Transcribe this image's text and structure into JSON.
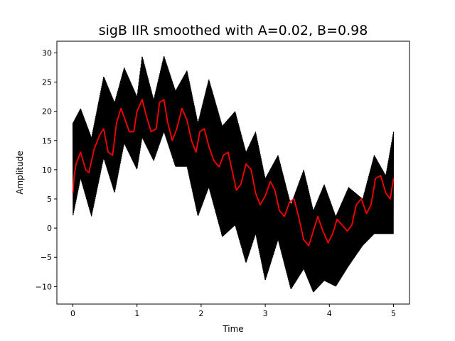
{
  "chart_data": {
    "type": "line",
    "title": "sigB IIR smoothed with A=0.02, B=0.98",
    "xlabel": "Time",
    "ylabel": "Amplitude",
    "xlim": [
      -0.25,
      5.25
    ],
    "ylim": [
      -13,
      32
    ],
    "xticks": [
      0,
      1,
      2,
      3,
      4,
      5
    ],
    "yticks": [
      -10,
      -5,
      0,
      5,
      10,
      15,
      20,
      25,
      30
    ],
    "grid": false,
    "legend": false,
    "series": [
      {
        "role": "raw",
        "color": "#000000",
        "x": [
          0,
          0.12,
          0.29,
          0.48,
          0.65,
          0.8,
          1.0,
          1.08,
          1.26,
          1.42,
          1.6,
          1.78,
          1.95,
          2.12,
          2.33,
          2.53,
          2.7,
          2.85,
          3.0,
          3.2,
          3.4,
          3.6,
          3.75,
          3.92,
          4.1,
          4.3,
          4.52,
          4.7,
          4.88,
          5.0
        ],
        "upper": [
          18,
          20.5,
          15.5,
          26,
          21.5,
          27.5,
          22.5,
          29.5,
          22,
          29.5,
          23.5,
          27,
          18,
          25.5,
          17.5,
          20,
          13,
          16.5,
          8.5,
          12.5,
          4,
          10,
          3,
          7.5,
          2,
          7,
          5,
          12.5,
          9,
          16.5
        ],
        "lower": [
          2,
          8.5,
          2,
          12,
          6,
          14.5,
          10,
          15.5,
          11.5,
          16.5,
          10.5,
          10.5,
          2,
          7,
          -1.5,
          0.5,
          -6,
          -1,
          -9,
          -2,
          -10.5,
          -7,
          -11,
          -9,
          -10,
          -6.5,
          -3,
          -1,
          -1,
          -1
        ]
      },
      {
        "role": "smoothed",
        "color": "#ff0000",
        "x": [
          0,
          0.02,
          0.05,
          0.12,
          0.2,
          0.25,
          0.33,
          0.42,
          0.48,
          0.55,
          0.62,
          0.68,
          0.75,
          0.8,
          0.88,
          0.95,
          1.0,
          1.08,
          1.15,
          1.22,
          1.3,
          1.35,
          1.42,
          1.48,
          1.55,
          1.62,
          1.7,
          1.78,
          1.85,
          1.92,
          1.98,
          2.05,
          2.12,
          2.2,
          2.28,
          2.35,
          2.42,
          2.48,
          2.55,
          2.62,
          2.7,
          2.78,
          2.85,
          2.92,
          3.0,
          3.08,
          3.15,
          3.22,
          3.3,
          3.38,
          3.45,
          3.52,
          3.6,
          3.68,
          3.75,
          3.82,
          3.9,
          3.98,
          4.05,
          4.12,
          4.2,
          4.28,
          4.35,
          4.42,
          4.5,
          4.58,
          4.65,
          4.72,
          4.8,
          4.88,
          4.95,
          5.0
        ],
        "y": [
          6,
          9,
          11,
          13,
          10,
          9.5,
          13.5,
          16,
          17,
          13,
          12.5,
          18,
          20.5,
          19,
          16.5,
          16.5,
          20,
          22,
          19,
          16.5,
          17,
          21.5,
          22,
          18,
          15,
          17,
          20.5,
          18.5,
          15,
          13,
          16.5,
          17,
          14,
          11.5,
          10.5,
          12.5,
          13,
          10,
          6.5,
          7.5,
          11,
          10,
          6,
          4,
          5.5,
          8,
          6.5,
          3,
          2,
          4.5,
          5,
          2,
          -2,
          -3,
          -0.5,
          2,
          -0.5,
          -2.5,
          -1,
          1.5,
          0.5,
          -0.5,
          0.5,
          4,
          5,
          2.5,
          4,
          8.5,
          9,
          6,
          5,
          8.5
        ]
      }
    ]
  }
}
